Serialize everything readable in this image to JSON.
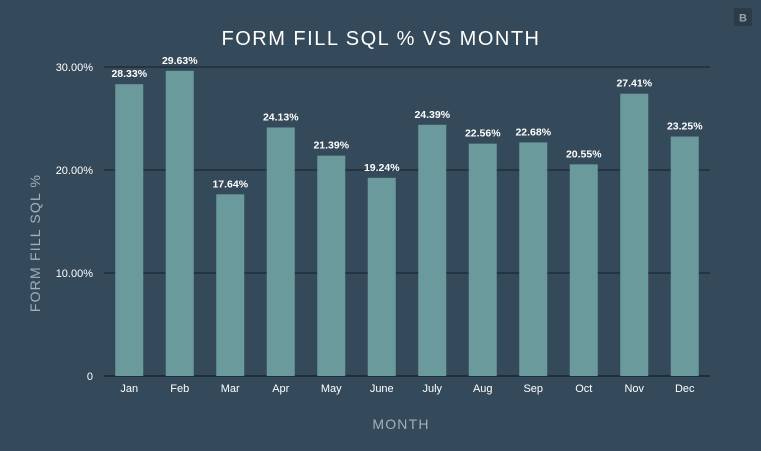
{
  "chart_data": {
    "type": "bar",
    "title": "FORM FILL SQL % VS MONTH",
    "xlabel": "MONTH",
    "ylabel": "FORM FILL SQL %",
    "categories": [
      "Jan",
      "Feb",
      "Mar",
      "Apr",
      "May",
      "June",
      "July",
      "Aug",
      "Sep",
      "Oct",
      "Nov",
      "Dec"
    ],
    "values": [
      28.33,
      29.63,
      17.64,
      24.13,
      21.39,
      19.24,
      24.39,
      22.56,
      22.68,
      20.55,
      27.41,
      23.25
    ],
    "data_labels": [
      "28.33%",
      "29.63%",
      "17.64%",
      "24.13%",
      "21.39%",
      "19.24%",
      "24.39%",
      "22.56%",
      "22.68%",
      "20.55%",
      "27.41%",
      "23.25%"
    ],
    "yticks": [
      0,
      10,
      20,
      30
    ],
    "ytick_labels": [
      "0",
      "10.00%",
      "20.00%",
      "30.00%"
    ],
    "ylim": [
      0,
      30
    ],
    "grid": true,
    "legend": "none",
    "colors": {
      "background": "#34495a",
      "bar": "#6b9a9d",
      "grid": "#1e2d38",
      "text": "#ffffff",
      "axis_label": "#9fb0bb"
    }
  },
  "logo": {
    "letter": "B",
    "icon": "brand-logo-icon"
  }
}
